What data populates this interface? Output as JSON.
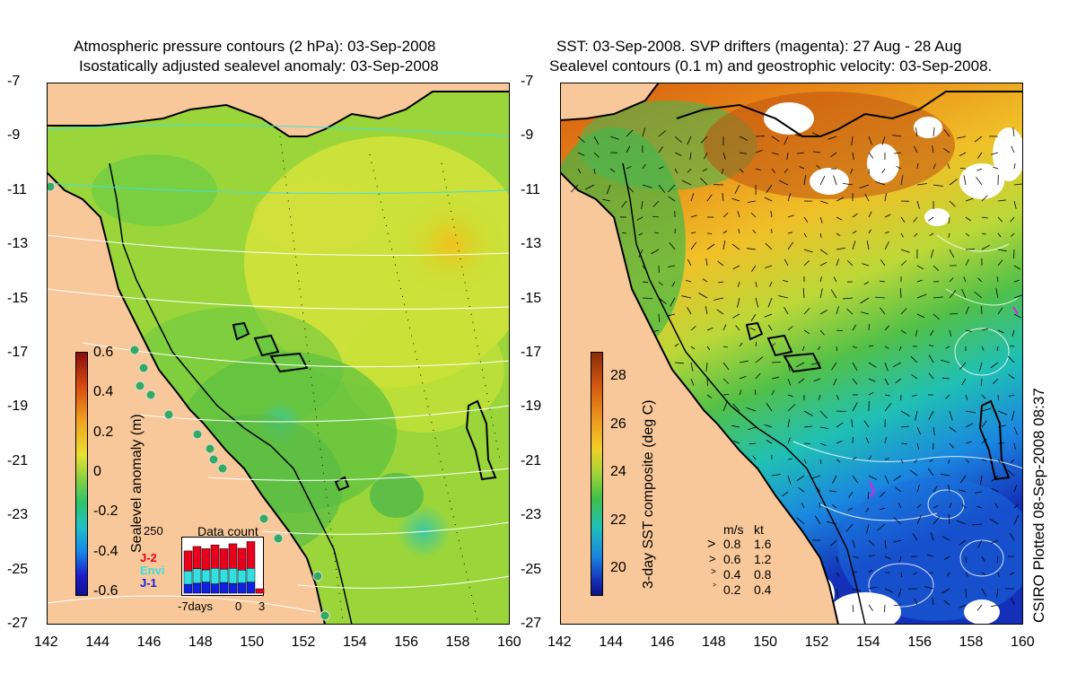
{
  "left": {
    "title_line1": "Atmospheric pressure contours (2 hPa): 03-Sep-2008",
    "title_line2": "Isostatically adjusted sealevel anomaly: 03-Sep-2008",
    "colorbar_label": "Sealevel anomaly (m)",
    "colorbar_ticks": [
      "0.6",
      "0.4",
      "0.2",
      "0",
      "-0.2",
      "-0.4",
      "-0.6"
    ],
    "inset": {
      "title": "Data count",
      "ymax": "250",
      "legend": [
        {
          "name": "J-2",
          "color": "#e8001c"
        },
        {
          "name": "Envi",
          "color": "#33e0e0"
        },
        {
          "name": "J-1",
          "color": "#1020e0"
        }
      ],
      "xticks": [
        "-7days",
        "0",
        "3"
      ],
      "bars": [
        {
          "j1": 40,
          "envi": 60,
          "j2": 90
        },
        {
          "j1": 45,
          "envi": 65,
          "j2": 100
        },
        {
          "j1": 50,
          "envi": 55,
          "j2": 95
        },
        {
          "j1": 42,
          "envi": 70,
          "j2": 105
        },
        {
          "j1": 48,
          "envi": 60,
          "j2": 92
        },
        {
          "j1": 44,
          "envi": 68,
          "j2": 110
        },
        {
          "j1": 46,
          "envi": 58,
          "j2": 98
        },
        {
          "j1": 50,
          "envi": 62,
          "j2": 120
        },
        {
          "j1": 0,
          "envi": 0,
          "j2": 20
        }
      ]
    }
  },
  "right": {
    "title_line1": "SST: 03-Sep-2008. SVP drifters (magenta): 27 Aug - 28 Aug",
    "title_line2": "Sealevel contours (0.1 m) and geostrophic velocity: 03-Sep-2008.",
    "colorbar_label": "3-day SST composite (deg C)",
    "colorbar_ticks": [
      "28",
      "26",
      "24",
      "22",
      "20"
    ],
    "speed_legend": {
      "header_ms": "m/s",
      "header_kt": "kt",
      "rows": [
        {
          "ms": "0.8",
          "kt": "1.6"
        },
        {
          "ms": "0.6",
          "kt": "1.2"
        },
        {
          "ms": "0.4",
          "kt": "0.8"
        },
        {
          "ms": "0.2",
          "kt": "0.4"
        }
      ]
    },
    "credit": "CSIRO Plotted 08-Sep-2008 08:37"
  },
  "axes": {
    "lat_ticks": [
      "-7",
      "-9",
      "-11",
      "-13",
      "-15",
      "-17",
      "-19",
      "-21",
      "-23",
      "-25",
      "-27"
    ],
    "lon_ticks": [
      "142",
      "144",
      "146",
      "148",
      "150",
      "152",
      "154",
      "156",
      "158",
      "160"
    ]
  },
  "colors": {
    "land": "#f8c89a",
    "contour": "#ffffff",
    "pressure_contour": "#40e0e0"
  }
}
